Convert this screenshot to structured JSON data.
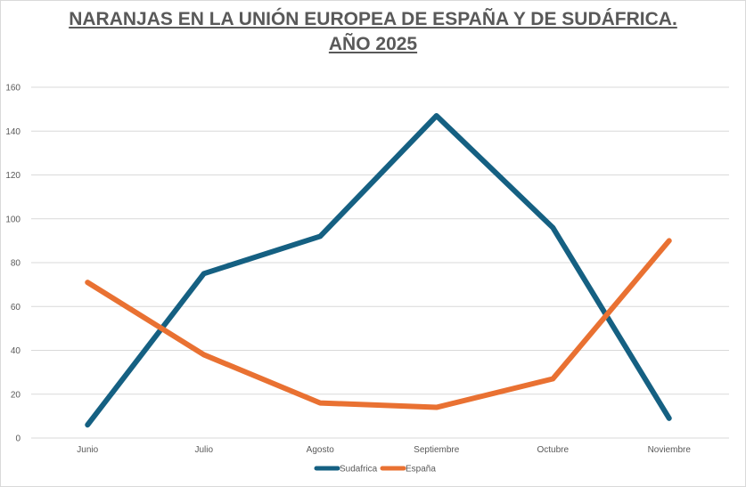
{
  "chart_data": {
    "type": "line",
    "title": "NARANJAS EN LA UNIÓN EUROPEA DE ESPAÑA Y DE SUDÁFRICA.",
    "subtitle": "AÑO 2025",
    "xlabel": "",
    "ylabel": "",
    "categories": [
      "Junio",
      "Julio",
      "Agosto",
      "Septiembre",
      "Octubre",
      "Noviembre"
    ],
    "ylim": [
      0,
      160
    ],
    "yticks": [
      0,
      20,
      40,
      60,
      80,
      100,
      120,
      140,
      160
    ],
    "grid": true,
    "legend_position": "bottom",
    "series": [
      {
        "name": "Sudafrica",
        "color": "#156082",
        "values": [
          6,
          75,
          92,
          147,
          96,
          9
        ]
      },
      {
        "name": "España",
        "color": "#E97132",
        "values": [
          71,
          38,
          16,
          14,
          27,
          90
        ]
      }
    ]
  }
}
